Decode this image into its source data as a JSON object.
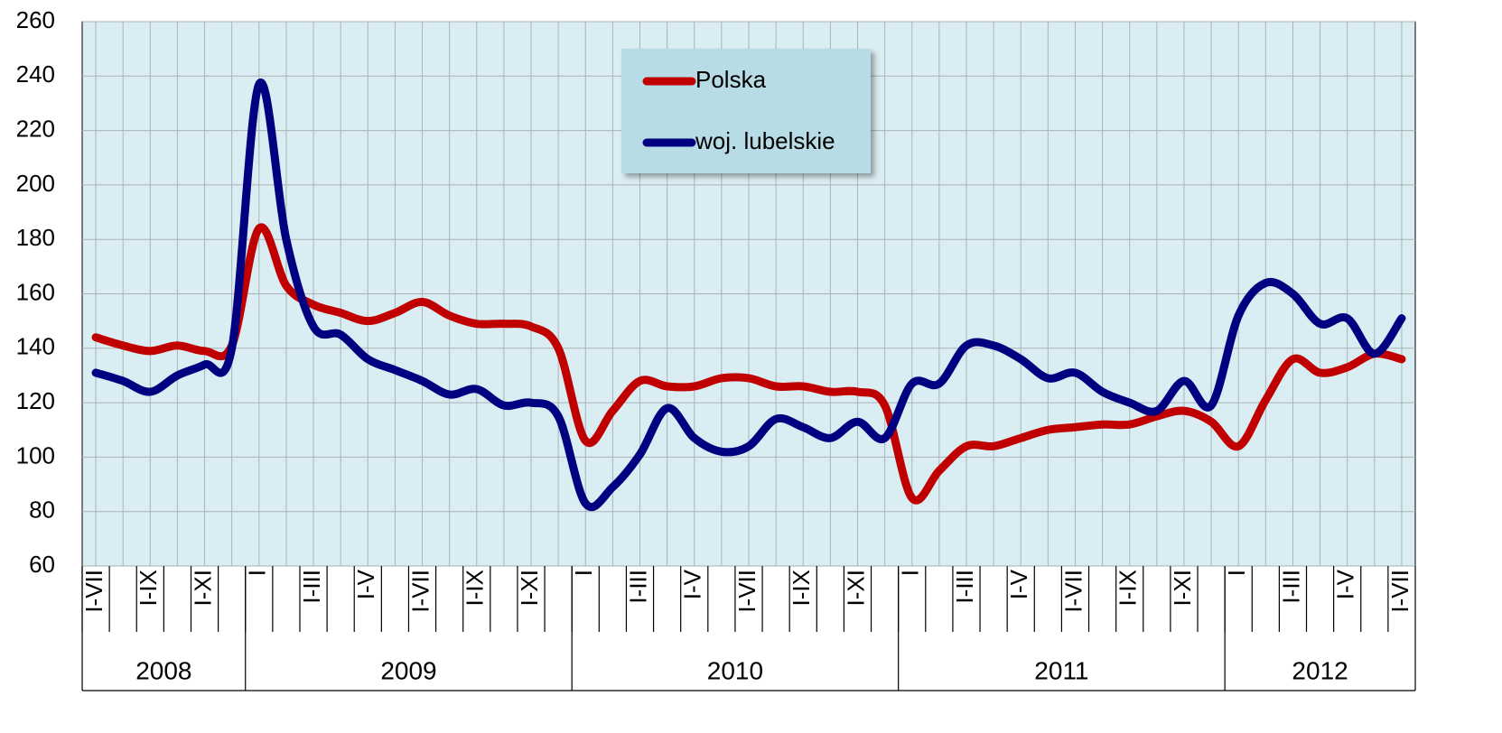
{
  "chart_data": {
    "type": "line",
    "categories": [
      "I-VII",
      null,
      "I-IX",
      null,
      "I-XI",
      null,
      "I",
      null,
      "I-III",
      null,
      "I-V",
      null,
      "I-VII",
      null,
      "I-IX",
      null,
      "I-XI",
      null,
      "I",
      null,
      "I-III",
      null,
      "I-V",
      null,
      "I-VII",
      null,
      "I-IX",
      null,
      "I-XI",
      null,
      "I",
      null,
      "I-III",
      null,
      "I-V",
      null,
      "I-VII",
      null,
      "I-IX",
      null,
      "I-XI",
      null,
      "I",
      null,
      "I-III",
      null,
      "I-V",
      null,
      "I-VII"
    ],
    "x_groups": [
      {
        "label": "2008",
        "span": 6
      },
      {
        "label": "2009",
        "span": 12
      },
      {
        "label": "2010",
        "span": 12
      },
      {
        "label": "2011",
        "span": 12
      },
      {
        "label": "2012",
        "span": 7
      }
    ],
    "series": [
      {
        "name": "Polska",
        "color": "#c00000",
        "values": [
          144,
          141,
          139,
          141,
          139,
          141,
          184,
          163,
          156,
          153,
          150,
          153,
          157,
          152,
          149,
          149,
          148,
          140,
          106,
          117,
          128,
          126,
          126,
          129,
          129,
          126,
          126,
          124,
          124,
          119,
          85,
          95,
          104,
          104,
          107,
          110,
          111,
          112,
          112,
          115,
          117,
          113,
          104,
          121,
          136,
          131,
          133,
          138,
          136
        ]
      },
      {
        "name": "woj. lubelskie",
        "color": "#000080",
        "values": [
          131,
          128,
          124,
          130,
          134,
          140,
          237,
          180,
          148,
          145,
          136,
          132,
          128,
          123,
          125,
          119,
          120,
          115,
          83,
          89,
          101,
          118,
          107,
          102,
          104,
          114,
          111,
          107,
          113,
          107,
          127,
          127,
          141,
          141,
          136,
          129,
          131,
          124,
          120,
          117,
          128,
          119,
          152,
          164,
          160,
          149,
          151,
          138,
          151
        ]
      }
    ],
    "ylim": [
      60,
      260
    ],
    "yticks": [
      60,
      80,
      100,
      120,
      140,
      160,
      180,
      200,
      220,
      240,
      260
    ],
    "grid": true
  }
}
